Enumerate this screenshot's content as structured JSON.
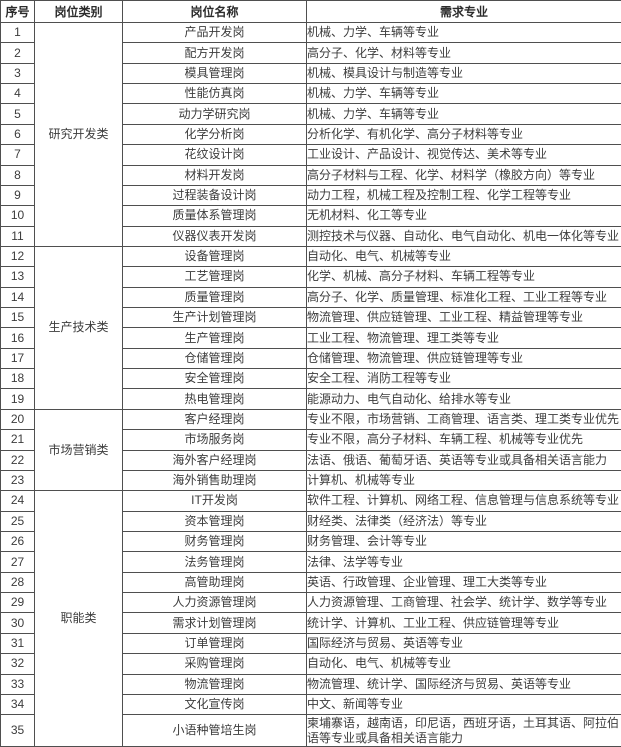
{
  "colors": {
    "border": "#4f4f4f",
    "text": "#3c3c3c",
    "header_text": "#2b2b2b",
    "background": "#ffffff"
  },
  "table": {
    "headers": {
      "serial": "序号",
      "category": "岗位类别",
      "position": "岗位名称",
      "majors": "需求专业"
    },
    "categories": [
      {
        "label": "研究开发类",
        "rows": [
          {
            "no": "1",
            "position": "产品开发岗",
            "majors": "机械、力学、车辆等专业"
          },
          {
            "no": "2",
            "position": "配方开发岗",
            "majors": "高分子、化学、材料等专业"
          },
          {
            "no": "3",
            "position": "模具管理岗",
            "majors": "机械、模具设计与制造等专业"
          },
          {
            "no": "4",
            "position": "性能仿真岗",
            "majors": "机械、力学、车辆等专业"
          },
          {
            "no": "5",
            "position": "动力学研究岗",
            "majors": "机械、力学、车辆等专业"
          },
          {
            "no": "6",
            "position": "化学分析岗",
            "majors": "分析化学、有机化学、高分子材料等专业"
          },
          {
            "no": "7",
            "position": "花纹设计岗",
            "majors": "工业设计、产品设计、视觉传达、美术等专业"
          },
          {
            "no": "8",
            "position": "材料开发岗",
            "majors": "高分子材料与工程、化学、材料学（橡胶方向）等专业"
          },
          {
            "no": "9",
            "position": "过程装备设计岗",
            "majors": "动力工程，机械工程及控制工程、化学工程等专业"
          },
          {
            "no": "10",
            "position": "质量体系管理岗",
            "majors": "无机材料、化工等专业"
          },
          {
            "no": "11",
            "position": "仪器仪表开发岗",
            "majors": "测控技术与仪器、自动化、电气自动化、机电一体化等专业"
          }
        ]
      },
      {
        "label": "生产技术类",
        "rows": [
          {
            "no": "12",
            "position": "设备管理岗",
            "majors": "自动化、电气、机械等专业"
          },
          {
            "no": "13",
            "position": "工艺管理岗",
            "majors": "化学、机械、高分子材料、车辆工程等专业"
          },
          {
            "no": "14",
            "position": "质量管理岗",
            "majors": "高分子、化学、质量管理、标准化工程、工业工程等专业"
          },
          {
            "no": "15",
            "position": "生产计划管理岗",
            "majors": "物流管理、供应链管理、工业工程、精益管理等专业"
          },
          {
            "no": "16",
            "position": "生产管理岗",
            "majors": "工业工程、物流管理、理工类等专业"
          },
          {
            "no": "17",
            "position": "仓储管理岗",
            "majors": "仓储管理、物流管理、供应链管理等专业"
          },
          {
            "no": "18",
            "position": "安全管理岗",
            "majors": "安全工程、消防工程等专业"
          },
          {
            "no": "19",
            "position": "热电管理岗",
            "majors": "能源动力、电气自动化、给排水等专业"
          }
        ]
      },
      {
        "label": "市场营销类",
        "rows": [
          {
            "no": "20",
            "position": "客户经理岗",
            "majors": "专业不限，市场营销、工商管理、语言类、理工类专业优先"
          },
          {
            "no": "21",
            "position": "市场服务岗",
            "majors": "专业不限，高分子材料、车辆工程、机械等专业优先"
          },
          {
            "no": "22",
            "position": "海外客户经理岗",
            "majors": "法语、俄语、葡萄牙语、英语等专业或具备相关语言能力"
          },
          {
            "no": "23",
            "position": "海外销售助理岗",
            "majors": "计算机、机械等专业"
          }
        ]
      },
      {
        "label": "职能类",
        "rows": [
          {
            "no": "24",
            "position": "IT开发岗",
            "majors": "软件工程、计算机、网络工程、信息管理与信息系统等专业"
          },
          {
            "no": "25",
            "position": "资本管理岗",
            "majors": "财经类、法律类（经济法）等专业"
          },
          {
            "no": "26",
            "position": "财务管理岗",
            "majors": "财务管理、会计等专业"
          },
          {
            "no": "27",
            "position": "法务管理岗",
            "majors": "法律、法学等专业"
          },
          {
            "no": "28",
            "position": "高管助理岗",
            "majors": "英语、行政管理、企业管理、理工大类等专业"
          },
          {
            "no": "29",
            "position": "人力资源管理岗",
            "majors": "人力资源管理、工商管理、社会学、统计学、数学等专业"
          },
          {
            "no": "30",
            "position": "需求计划管理岗",
            "majors": "统计学、计算机、工业工程、供应链管理等专业"
          },
          {
            "no": "31",
            "position": "订单管理岗",
            "majors": "国际经济与贸易、英语等专业"
          },
          {
            "no": "32",
            "position": "采购管理岗",
            "majors": "自动化、电气、机械等专业"
          },
          {
            "no": "33",
            "position": "物流管理岗",
            "majors": "物流管理、统计学、国际经济与贸易、英语等专业"
          },
          {
            "no": "34",
            "position": "文化宣传岗",
            "majors": "中文、新闻等专业"
          },
          {
            "no": "35",
            "position": "小语种管培生岗",
            "majors": "柬埔寨语，越南语，印尼语，西班牙语，土耳其语、阿拉伯语等专业或具备相关语言能力"
          }
        ]
      }
    ]
  }
}
